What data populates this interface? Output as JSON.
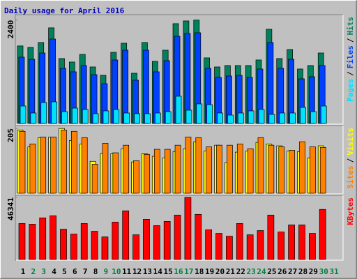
{
  "chart_data": [
    {
      "type": "bar",
      "title": "Daily usage for April 2016",
      "series": [
        {
          "name": "Hits",
          "color": "#00805c",
          "values": [
            1800,
            1766,
            1880,
            2220,
            1507,
            1426,
            1604,
            1312,
            1118,
            1652,
            1863,
            1166,
            1880,
            1442,
            1701,
            2317,
            2381,
            2400,
            1523,
            1312,
            1345,
            1345,
            1345,
            1474,
            2187,
            1507,
            1717,
            1264,
            1345,
            1636,
            null
          ]
        },
        {
          "name": "Files",
          "color": "#0040ff",
          "values": [
            1539,
            1490,
            1636,
            1960,
            1280,
            1199,
            1345,
            1134,
            923,
            1474,
            1701,
            1004,
            1701,
            1199,
            1458,
            2025,
            2090,
            2106,
            1280,
            1069,
            1102,
            1118,
            1069,
            1264,
            1880,
            1280,
            1490,
            1037,
            1085,
            1345,
            null
          ]
        },
        {
          "name": "Pages",
          "color": "#00e0ff",
          "values": [
            405,
            243,
            486,
            502,
            275,
            356,
            324,
            227,
            292,
            324,
            243,
            227,
            227,
            243,
            275,
            632,
            308,
            454,
            437,
            243,
            194,
            243,
            292,
            324,
            211,
            243,
            243,
            373,
            275,
            405,
            null
          ]
        }
      ],
      "ylim": [
        0,
        2510
      ],
      "yticks": [
        2400
      ],
      "legend_separator": "/"
    },
    {
      "type": "bar",
      "series": [
        {
          "name": "Visits",
          "color": "#ffff00",
          "values": [
            200,
            147,
            176,
            178,
            205,
            167,
            156,
            101,
            125,
            125,
            141,
            99,
            125,
            117,
            112,
            132,
            141,
            163,
            134,
            152,
            97,
            130,
            134,
            161,
            156,
            150,
            134,
            132,
            112,
            150,
            null
          ]
        },
        {
          "name": "Sites",
          "color": "#ff8000",
          "values": [
            196,
            156,
            178,
            178,
            200,
            196,
            176,
            92,
            158,
            128,
            152,
            103,
            123,
            139,
            139,
            152,
            178,
            176,
            147,
            152,
            152,
            156,
            141,
            176,
            152,
            147,
            136,
            163,
            147,
            145,
            null
          ]
        }
      ],
      "ylim": [
        0,
        212
      ],
      "yticks": [
        205
      ],
      "legend_separator": "/"
    },
    {
      "type": "bar",
      "series": [
        {
          "name": "KBytes",
          "color": "#ff0000",
          "values": [
            26857,
            26330,
            31070,
            32650,
            22640,
            18960,
            26857,
            21060,
            16850,
            27910,
            36340,
            18430,
            30020,
            25280,
            28440,
            33180,
            46341,
            33700,
            22120,
            19480,
            17380,
            26857,
            18430,
            21590,
            33180,
            20540,
            25800,
            25800,
            19480,
            37390,
            null
          ]
        }
      ],
      "ylim": [
        0,
        47400
      ],
      "yticks": [
        46341
      ],
      "categories": [
        "1",
        "2",
        "3",
        "4",
        "5",
        "6",
        "7",
        "8",
        "9",
        "10",
        "11",
        "12",
        "13",
        "14",
        "15",
        "16",
        "17",
        "18",
        "19",
        "20",
        "21",
        "22",
        "23",
        "24",
        "25",
        "26",
        "27",
        "28",
        "29",
        "30",
        "31"
      ],
      "label_colors": [
        "#000",
        "#008040",
        "#008040",
        "#000",
        "#000",
        "#000",
        "#000",
        "#000",
        "#008040",
        "#008040",
        "#000",
        "#000",
        "#000",
        "#000",
        "#000",
        "#008040",
        "#008040",
        "#000",
        "#000",
        "#000",
        "#000",
        "#000",
        "#008040",
        "#008040",
        "#000",
        "#000",
        "#000",
        "#000",
        "#000",
        "#008040",
        "#008040"
      ]
    }
  ]
}
